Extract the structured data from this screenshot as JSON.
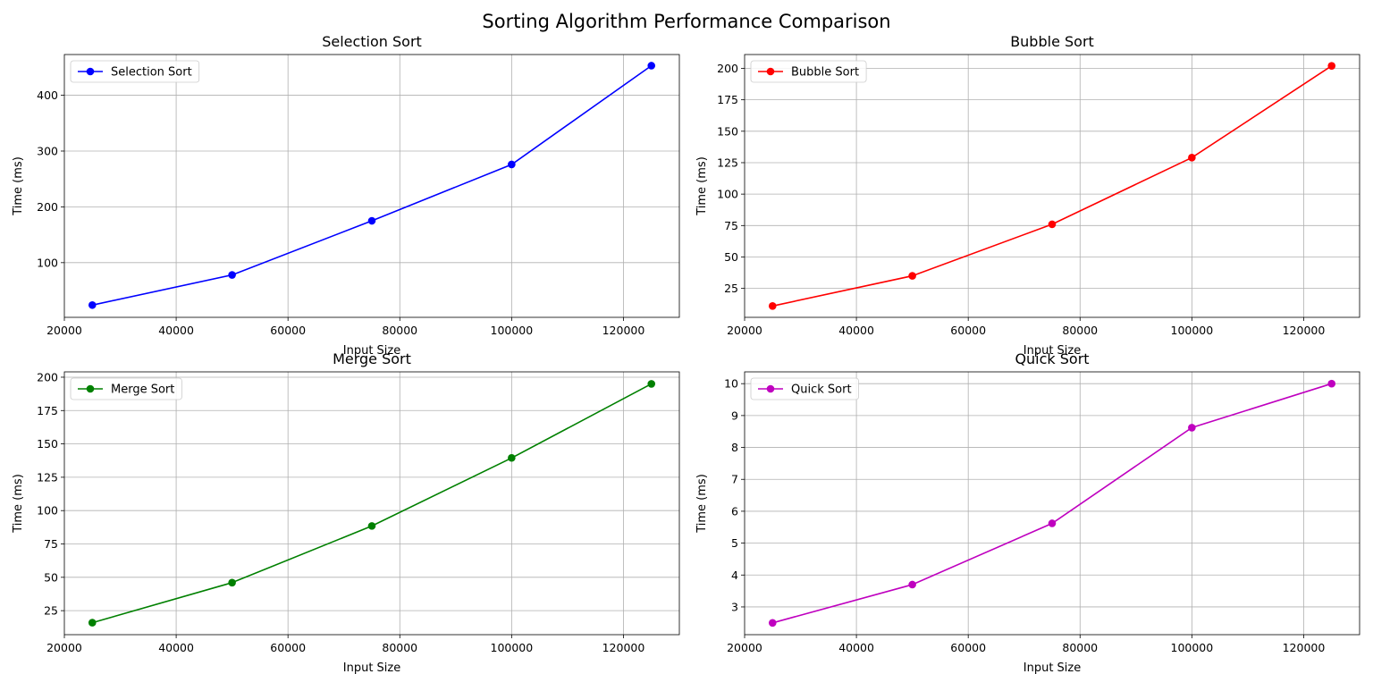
{
  "figure": {
    "title": "Sorting Algorithm Performance Comparison"
  },
  "chart_data": [
    {
      "type": "line",
      "title": "Selection Sort",
      "xlabel": "Input Size",
      "ylabel": "Time (ms)",
      "x": [
        25000,
        50000,
        75000,
        100000,
        125000
      ],
      "series": [
        {
          "name": "Selection Sort",
          "values": [
            24,
            78,
            175,
            276,
            453
          ],
          "color": "#0000ff",
          "marker": "circle"
        }
      ],
      "xlim": [
        20000,
        130000
      ],
      "ylim": [
        2,
        473
      ],
      "xticks": [
        20000,
        40000,
        60000,
        80000,
        100000,
        120000
      ],
      "yticks": [
        100,
        200,
        300,
        400
      ],
      "grid": true,
      "legend": "top-left"
    },
    {
      "type": "line",
      "title": "Bubble Sort",
      "xlabel": "Input Size",
      "ylabel": "Time (ms)",
      "x": [
        25000,
        50000,
        75000,
        100000,
        125000
      ],
      "series": [
        {
          "name": "Bubble Sort",
          "values": [
            11,
            35,
            76,
            129,
            202
          ],
          "color": "#ff0000",
          "marker": "circle"
        }
      ],
      "xlim": [
        20000,
        130000
      ],
      "ylim": [
        2,
        211
      ],
      "xticks": [
        20000,
        40000,
        60000,
        80000,
        100000,
        120000
      ],
      "yticks": [
        25,
        50,
        75,
        100,
        125,
        150,
        175,
        200
      ],
      "grid": true,
      "legend": "top-left"
    },
    {
      "type": "line",
      "title": "Merge Sort",
      "xlabel": "Input Size",
      "ylabel": "Time (ms)",
      "x": [
        25000,
        50000,
        75000,
        100000,
        125000
      ],
      "series": [
        {
          "name": "Merge Sort",
          "values": [
            16,
            46,
            88.5,
            139.5,
            195
          ],
          "color": "#008000",
          "marker": "circle"
        }
      ],
      "xlim": [
        20000,
        130000
      ],
      "ylim": [
        7,
        204
      ],
      "xticks": [
        20000,
        40000,
        60000,
        80000,
        100000,
        120000
      ],
      "yticks": [
        25,
        50,
        75,
        100,
        125,
        150,
        175,
        200
      ],
      "grid": true,
      "legend": "top-left"
    },
    {
      "type": "line",
      "title": "Quick Sort",
      "xlabel": "Input Size",
      "ylabel": "Time (ms)",
      "x": [
        25000,
        50000,
        75000,
        100000,
        125000
      ],
      "series": [
        {
          "name": "Quick Sort",
          "values": [
            2.5,
            3.7,
            5.62,
            8.62,
            10.0
          ],
          "color": "#bf00bf",
          "marker": "circle"
        }
      ],
      "xlim": [
        20000,
        130000
      ],
      "ylim": [
        2.13,
        10.37
      ],
      "xticks": [
        20000,
        40000,
        60000,
        80000,
        100000,
        120000
      ],
      "yticks": [
        3,
        4,
        5,
        6,
        7,
        8,
        9,
        10
      ],
      "grid": true,
      "legend": "top-left"
    }
  ]
}
